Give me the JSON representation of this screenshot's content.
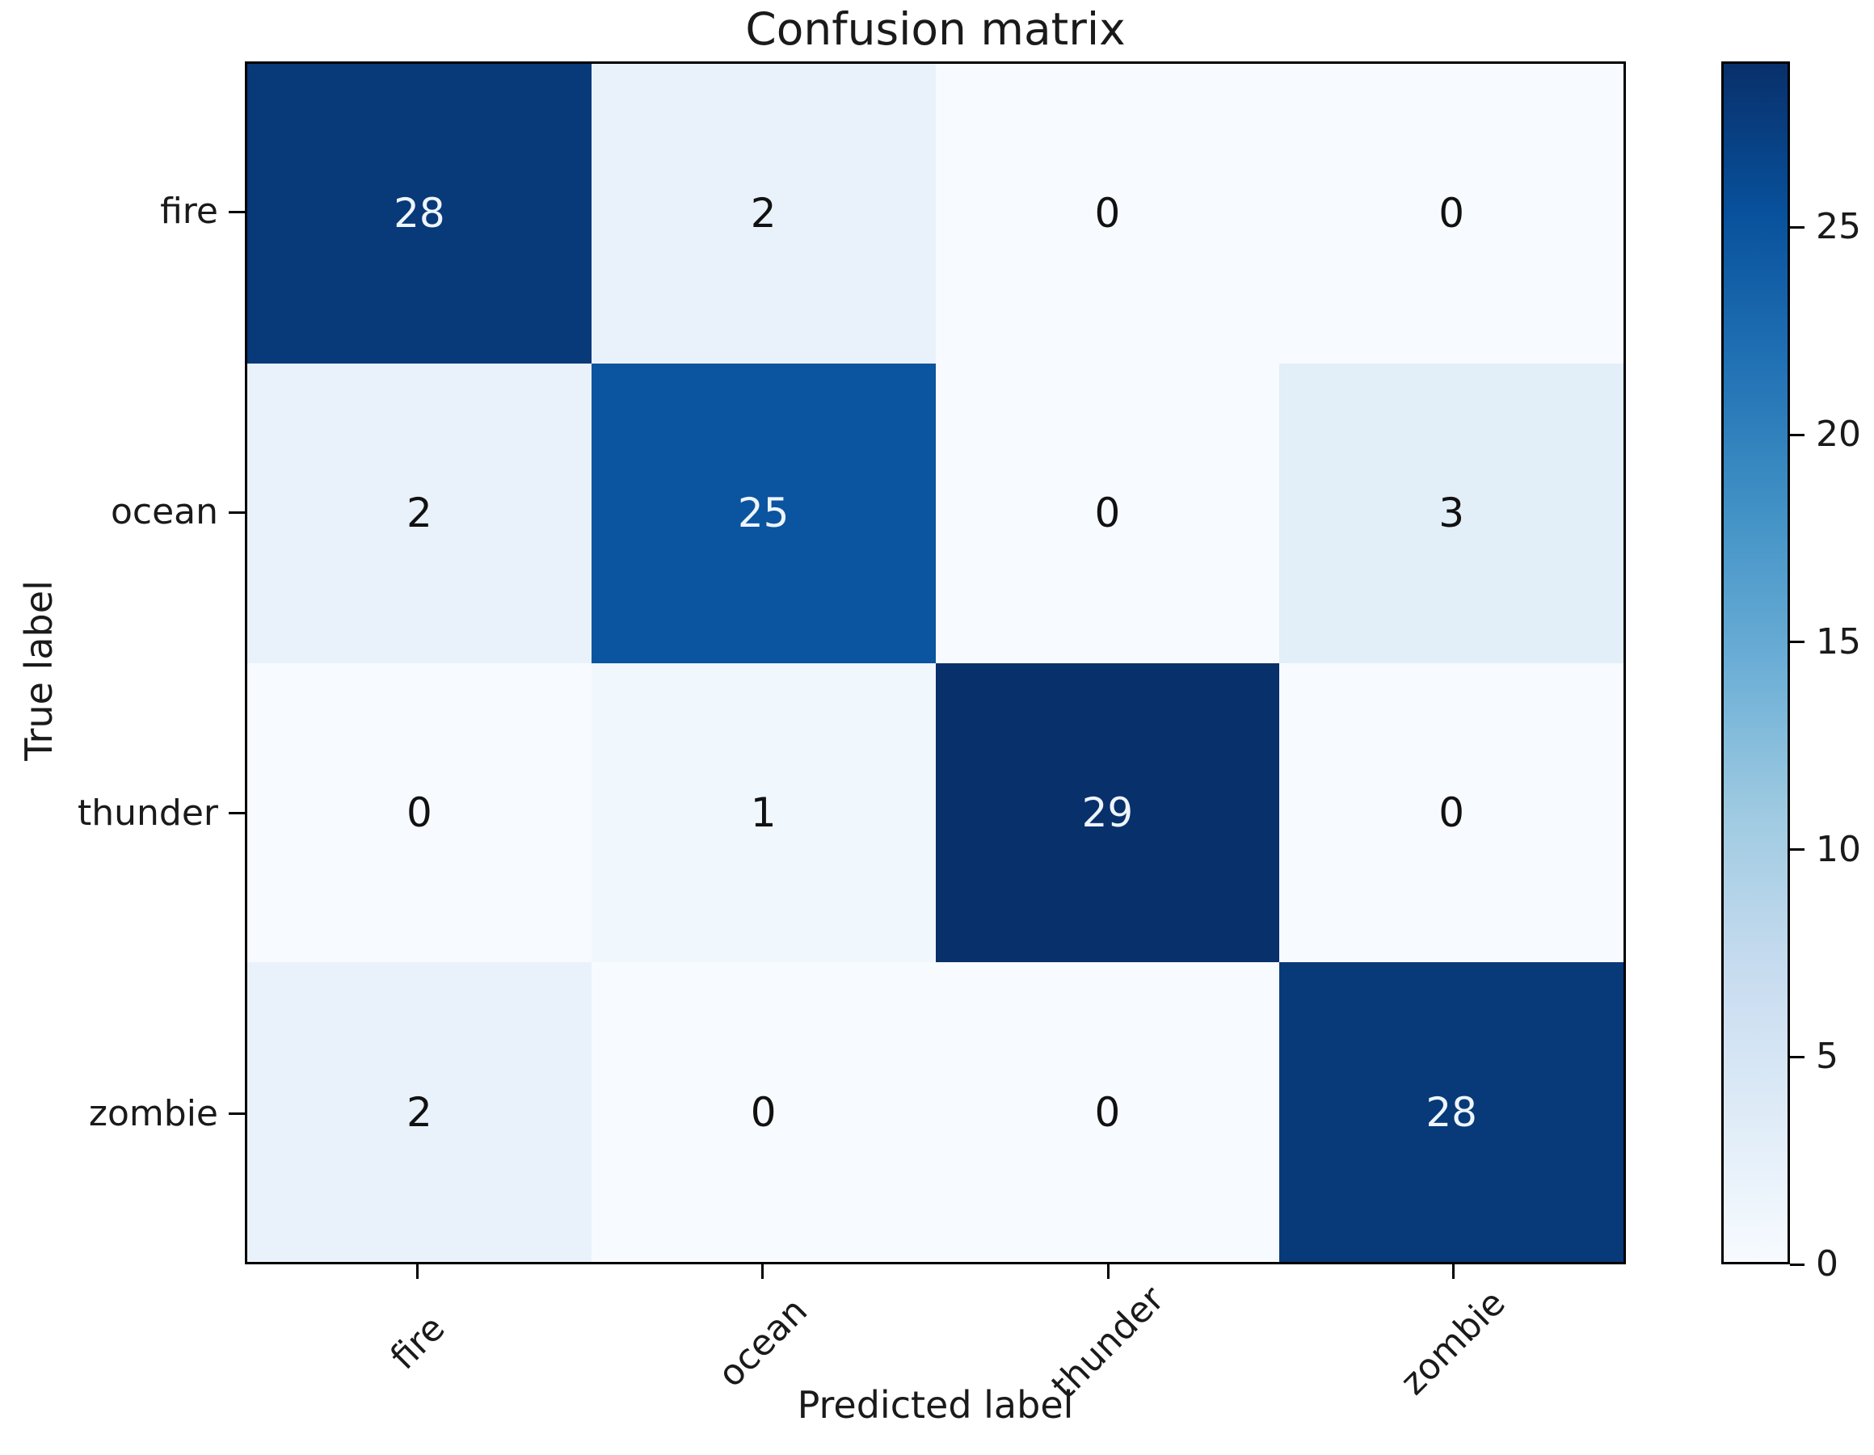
{
  "chart_data": {
    "type": "heatmap",
    "title": "Confusion matrix",
    "xlabel": "Predicted label",
    "ylabel": "True label",
    "x_categories": [
      "fire",
      "ocean",
      "thunder",
      "zombie"
    ],
    "y_categories": [
      "fire",
      "ocean",
      "thunder",
      "zombie"
    ],
    "matrix": [
      [
        28,
        2,
        0,
        0
      ],
      [
        2,
        25,
        0,
        3
      ],
      [
        0,
        1,
        29,
        0
      ],
      [
        2,
        0,
        0,
        28
      ]
    ],
    "vmin": 0,
    "vmax": 29,
    "colormap": "Blues",
    "colorbar_ticks": [
      0,
      5,
      10,
      15,
      20,
      25
    ],
    "colormap_stops": [
      [
        0.0,
        247,
        251,
        255
      ],
      [
        0.125,
        222,
        235,
        247
      ],
      [
        0.25,
        198,
        219,
        239
      ],
      [
        0.375,
        158,
        202,
        225
      ],
      [
        0.5,
        107,
        174,
        214
      ],
      [
        0.625,
        66,
        146,
        198
      ],
      [
        0.75,
        33,
        113,
        181
      ],
      [
        0.875,
        8,
        81,
        156
      ],
      [
        1.0,
        8,
        48,
        107
      ]
    ],
    "colors": {
      "cell_text_dark": "#111111",
      "cell_text_light": "#eef5fc",
      "axis": "#000000",
      "label_text": "#1a1a1a"
    }
  }
}
